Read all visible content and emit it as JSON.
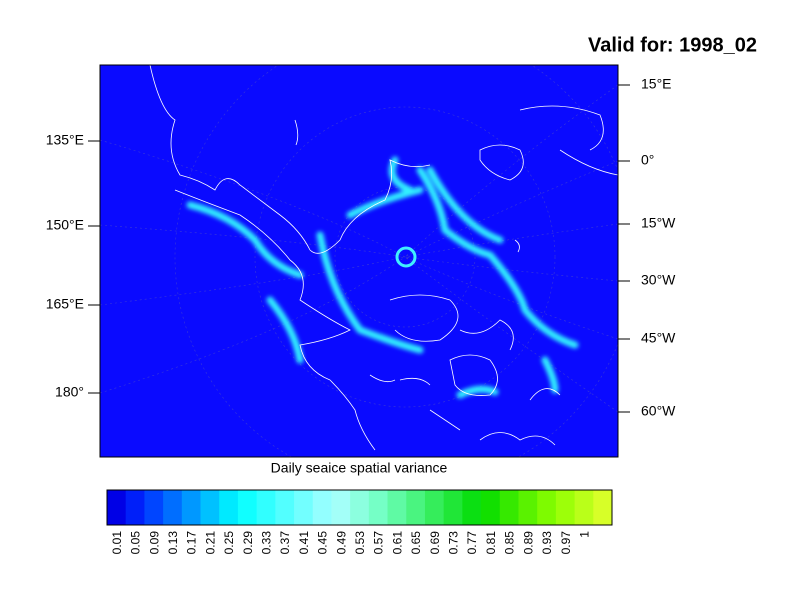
{
  "title": "Valid for: 1998_02",
  "map": {
    "left_labels": [
      "135°E",
      "150°E",
      "165°E",
      "180°"
    ],
    "right_labels": [
      "15°E",
      "0°",
      "15°W",
      "30°W",
      "45°W",
      "60°W"
    ],
    "caption": "Daily seaice spatial variance"
  },
  "colorbar": {
    "labels": [
      "0.01",
      "0.05",
      "0.09",
      "0.13",
      "0.17",
      "0.21",
      "0.25",
      "0.29",
      "0.33",
      "0.37",
      "0.41",
      "0.45",
      "0.49",
      "0.53",
      "0.57",
      "0.61",
      "0.65",
      "0.69",
      "0.73",
      "0.77",
      "0.81",
      "0.85",
      "0.89",
      "0.93",
      "0.97",
      "1"
    ]
  }
}
